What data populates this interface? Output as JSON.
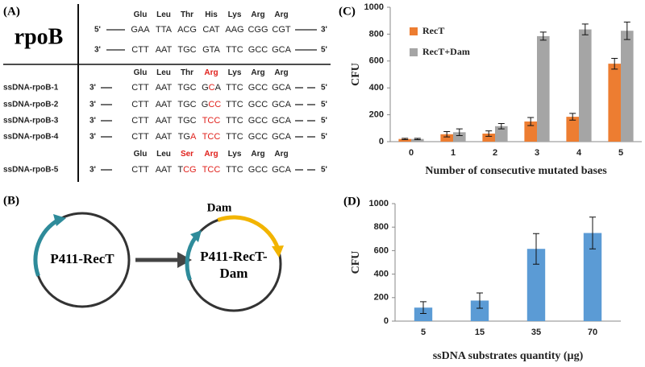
{
  "panel_a": {
    "label": "(A)",
    "gene": "rpoB",
    "highlight_color": "#e0201b",
    "top_rows": [
      {
        "amino_acids": [
          "Glu",
          "Leu",
          "Thr",
          "His",
          "Lys",
          "Arg",
          "Arg"
        ]
      },
      {
        "left": "5'",
        "codons": [
          "GAA",
          "TTA",
          "ACG",
          "CAT",
          "AAG",
          "CGG",
          "CGT"
        ],
        "right": "3'"
      },
      {
        "left": "3'",
        "codons": [
          "CTT",
          "AAT",
          "TGC",
          "GTA",
          "TTC",
          "GCC",
          "GCA"
        ],
        "right": "5'"
      }
    ],
    "bottom_rows": [
      {
        "amino_acids": [
          "Glu",
          "Leu",
          "Thr",
          {
            "text": "Arg",
            "highlight": true
          },
          "Lys",
          "Arg",
          "Arg"
        ]
      },
      {
        "label": "ssDNA-rpoB-1",
        "left": "3'",
        "codons": [
          "CTT",
          "AAT",
          "TGC",
          [
            "G",
            {
              "text": "C",
              "highlight": true
            },
            "A"
          ],
          "TTC",
          "GCC",
          "GCA"
        ],
        "right": "5'"
      },
      {
        "label": "ssDNA-rpoB-2",
        "left": "3'",
        "codons": [
          "CTT",
          "AAT",
          "TGC",
          [
            "G",
            {
              "text": "CC",
              "highlight": true
            }
          ],
          "TTC",
          "GCC",
          "GCA"
        ],
        "right": "5'"
      },
      {
        "label": "ssDNA-rpoB-3",
        "left": "3'",
        "codons": [
          "CTT",
          "AAT",
          "TGC",
          [
            {
              "text": "TCC",
              "highlight": true
            }
          ],
          "TTC",
          "GCC",
          "GCA"
        ],
        "right": "5'"
      },
      {
        "label": "ssDNA-rpoB-4",
        "left": "3'",
        "codons": [
          "CTT",
          "AAT",
          [
            "TG",
            {
              "text": "A",
              "highlight": true
            }
          ],
          [
            {
              "text": "TCC",
              "highlight": true
            }
          ],
          "TTC",
          "GCC",
          "GCA"
        ],
        "right": "5'"
      },
      {
        "amino_acids": [
          "Glu",
          "Leu",
          {
            "text": "Ser",
            "highlight": true
          },
          {
            "text": "Arg",
            "highlight": true
          },
          "Lys",
          "Arg",
          "Arg"
        ]
      },
      {
        "label": "ssDNA-rpoB-5",
        "left": "3'",
        "codons": [
          "CTT",
          "AAT",
          [
            "T",
            {
              "text": "CG",
              "highlight": true
            }
          ],
          [
            {
              "text": "TCC",
              "highlight": true
            }
          ],
          "TTC",
          "GCC",
          "GCA"
        ],
        "right": "5'"
      }
    ]
  },
  "panel_b": {
    "label": "(B)",
    "plasmid_1": "P411-RecT",
    "plasmid_2": [
      "P411-RecT-",
      "Dam"
    ],
    "insert": "Dam"
  },
  "chart_data": [
    {
      "type": "bar",
      "panel_label": "(C)",
      "y_label": "CFU",
      "x_label": "Number of consecutive mutated bases",
      "categories": [
        "0",
        "1",
        "2",
        "3",
        "4",
        "5"
      ],
      "ylim": [
        0,
        1000
      ],
      "yticks": [
        0,
        200,
        400,
        600,
        800,
        1000
      ],
      "legend": "upper left",
      "series": [
        {
          "name": "RecT",
          "color": "#ed7d31",
          "values": [
            20,
            55,
            60,
            150,
            185,
            580
          ],
          "errors": [
            5,
            20,
            20,
            30,
            25,
            40
          ]
        },
        {
          "name": "RecT+Dam",
          "color": "#a5a5a5",
          "values": [
            20,
            70,
            115,
            785,
            835,
            825
          ],
          "errors": [
            5,
            25,
            20,
            30,
            40,
            65
          ]
        }
      ]
    },
    {
      "type": "bar",
      "panel_label": "(D)",
      "y_label": "CFU",
      "x_label": "ssDNA substrates quantity (µg)",
      "categories": [
        "5",
        "15",
        "35",
        "70"
      ],
      "ylim": [
        0,
        1000
      ],
      "yticks": [
        0,
        200,
        400,
        600,
        800,
        1000
      ],
      "series": [
        {
          "color": "#5b9bd5",
          "values": [
            115,
            175,
            615,
            750
          ],
          "errors": [
            50,
            65,
            130,
            135
          ]
        }
      ]
    }
  ]
}
